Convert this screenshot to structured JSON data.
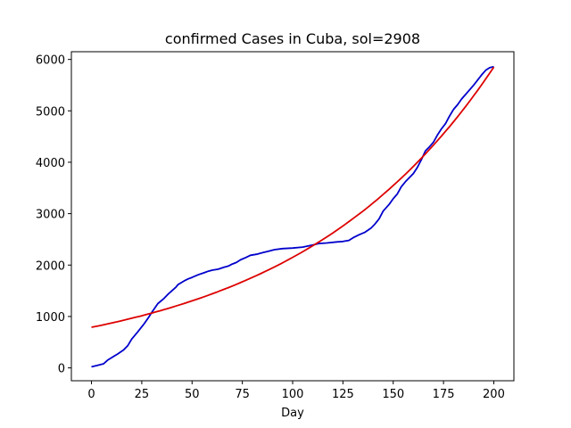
{
  "chart_data": {
    "type": "line",
    "title": "confirmed Cases in Cuba, sol=2908",
    "xlabel": "Day",
    "ylabel": "",
    "xlim": [
      -10,
      210
    ],
    "ylim": [
      -250,
      6150
    ],
    "xticks": [
      0,
      25,
      50,
      75,
      100,
      125,
      150,
      175,
      200
    ],
    "yticks": [
      0,
      1000,
      2000,
      3000,
      4000,
      5000,
      6000
    ],
    "grid": false,
    "legend": false,
    "series": [
      {
        "color": "#0000cc",
        "x": [
          0,
          3,
          6,
          8,
          10,
          13,
          16,
          18,
          20,
          23,
          26,
          28,
          30,
          33,
          36,
          38,
          40,
          42,
          43,
          46,
          48,
          50,
          53,
          56,
          58,
          60,
          63,
          66,
          68,
          70,
          72,
          74,
          77,
          79,
          82,
          85,
          88,
          91,
          95,
          100,
          105,
          110,
          113,
          117,
          122,
          125,
          128,
          130,
          133,
          136,
          139,
          141,
          143,
          145,
          148,
          150,
          152,
          154,
          156,
          158,
          160,
          162,
          164,
          166,
          168,
          170,
          172,
          174,
          176,
          178,
          180,
          182,
          184,
          186,
          188,
          190,
          192,
          194,
          196,
          198,
          200
        ],
        "y": [
          20,
          50,
          80,
          150,
          200,
          270,
          350,
          430,
          560,
          700,
          850,
          960,
          1080,
          1250,
          1350,
          1430,
          1500,
          1570,
          1620,
          1690,
          1730,
          1760,
          1810,
          1850,
          1880,
          1900,
          1920,
          1960,
          1980,
          2020,
          2050,
          2100,
          2150,
          2190,
          2210,
          2240,
          2270,
          2300,
          2320,
          2330,
          2350,
          2390,
          2420,
          2430,
          2450,
          2460,
          2480,
          2530,
          2590,
          2640,
          2720,
          2800,
          2900,
          3050,
          3180,
          3290,
          3380,
          3520,
          3620,
          3700,
          3780,
          3900,
          4050,
          4220,
          4300,
          4390,
          4530,
          4650,
          4750,
          4900,
          5030,
          5120,
          5230,
          5320,
          5410,
          5500,
          5600,
          5700,
          5790,
          5840,
          5860
        ]
      },
      {
        "color": "#dd0000",
        "model": "exponential",
        "x_range": [
          0,
          200
        ],
        "y_start": 790,
        "y_end": 5850
      }
    ]
  }
}
